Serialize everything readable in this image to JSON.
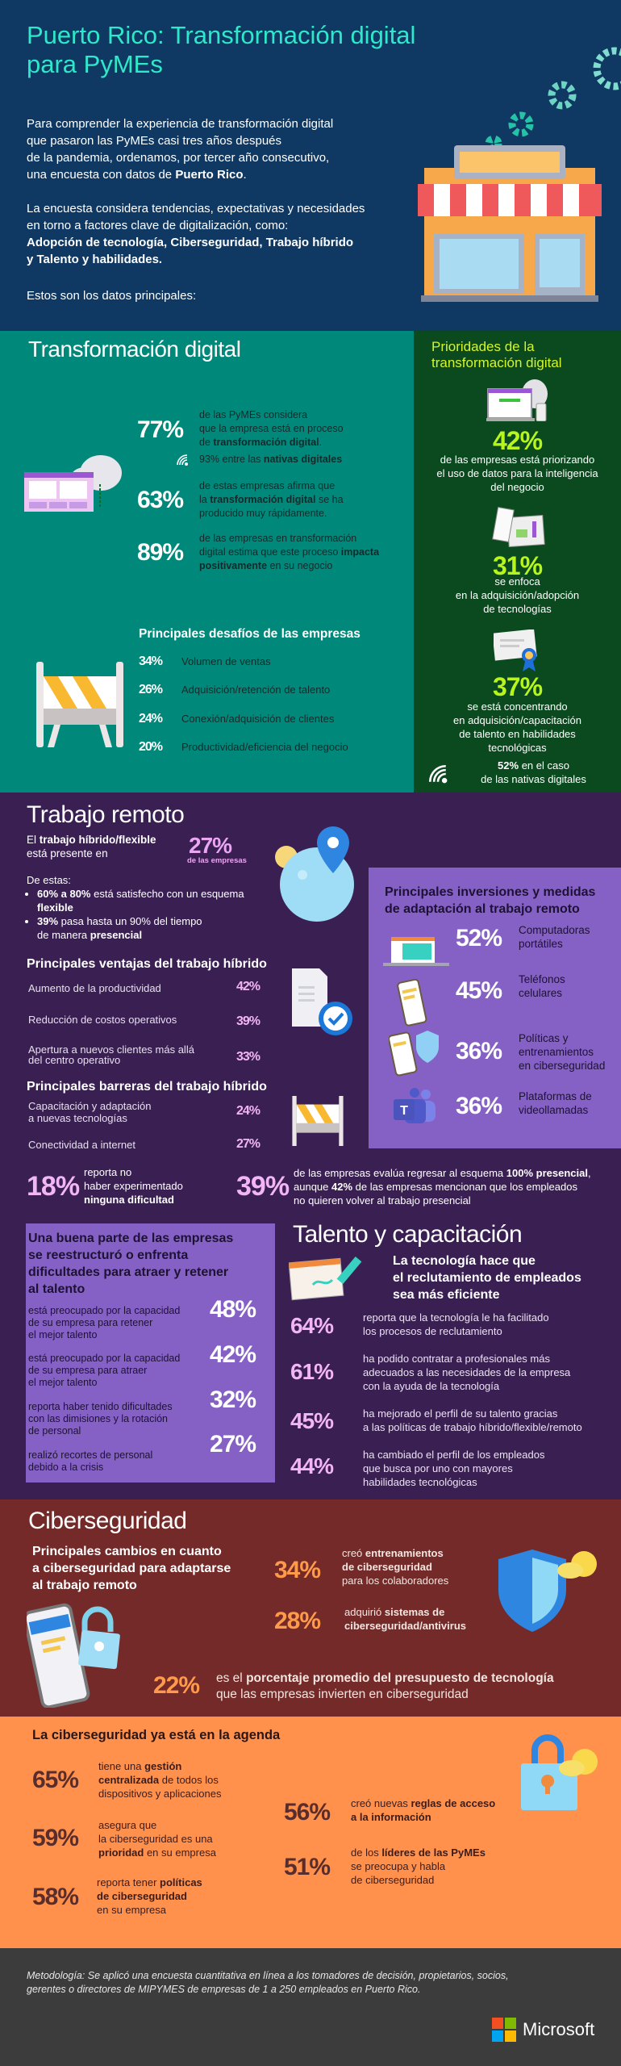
{
  "colors": {
    "header": "#0f3862",
    "title": "#2ee8c9",
    "teal": "#00897b",
    "green": "#0b4a1f",
    "lime": "#c8f52c",
    "purple_dark": "#3a1f52",
    "purple_light": "#8661c5",
    "pink": "#f2b5f6",
    "maroon": "#732a28",
    "orange_text": "#ff9a4a",
    "orange": "#ff914d",
    "brown": "#5a2d2d",
    "footer": "#3c3c3c"
  },
  "header": {
    "title_line1": "Puerto Rico: Transformación digital",
    "title_line2": "para PyMEs",
    "intro1": [
      "Para comprender la experiencia de transformación digital\nque pasaron las PyMEs casi tres años después\nde la pandemia, ordenamos, por tercer año consecutivo,\nuna encuesta con datos de ",
      {
        "b": "Puerto Rico"
      },
      "."
    ],
    "intro2": [
      "La encuesta considera tendencias, expectativas y necesidades\nen torno a factores clave de digitalización, como:\n",
      {
        "b": "Adopción de tecnología, Ciberseguridad, Trabajo híbrido\ny Talento y habilidades."
      }
    ],
    "closing": "Estos son los datos principales:"
  },
  "transformacion": {
    "title": "Transformación digital",
    "stats": [
      {
        "pct": "77%",
        "text": [
          "de las PyMEs considera\nque la empresa está en proceso\nde ",
          {
            "b": "transformación digital"
          },
          "."
        ]
      },
      {
        "pct": "63%",
        "text": [
          "de estas empresas afirma que\nla ",
          {
            "b": "transformación digital"
          },
          " se ha\nproducido muy rápidamente."
        ]
      },
      {
        "pct": "89%",
        "text": [
          "de las empresas en transformación\ndigital estima que este proceso ",
          {
            "b": "impacta\npositivamente"
          },
          " en su negocio"
        ]
      }
    ],
    "native_note": [
      "93% entre las ",
      {
        "b": "nativas digitales"
      }
    ],
    "challenges_title": "Principales desafíos de las empresas",
    "challenges": [
      {
        "pct": "34%",
        "label": "Volumen de ventas"
      },
      {
        "pct": "26%",
        "label": "Adquisición/retención de talento"
      },
      {
        "pct": "24%",
        "label": "Conexión/adquisición de clientes"
      },
      {
        "pct": "20%",
        "label": "Productividad/eficiencia del negocio"
      }
    ],
    "priorities": {
      "title": "Prioridades de la\ntransformación digital",
      "items": [
        {
          "pct": "42%",
          "text": "de las empresas está priorizando\nel uso de datos para la inteligencia\ndel negocio"
        },
        {
          "pct": "31%",
          "text": "se enfoca\nen la adquisición/adopción\nde tecnologías"
        },
        {
          "pct": "37%",
          "text": "se está concentrando\nen adquisición/capacitación\nde talento en habilidades\ntecnológicas"
        }
      ],
      "native_note": [
        {
          "b": "52%"
        },
        " en el caso\nde las nativas digitales"
      ]
    }
  },
  "remoto": {
    "title": "Trabajo remoto",
    "presence": [
      "El ",
      {
        "b": "trabajo híbrido/flexible"
      },
      "\nestá presente en"
    ],
    "presence_pct": "27%",
    "presence_pct_label": "de las empresas",
    "of_these": "De estas:",
    "bullets": [
      [
        {
          "b": "60% a 80%"
        },
        " está satisfecho con un esquema\n",
        {
          "b": "flexible"
        }
      ],
      [
        {
          "b": "39%"
        },
        " pasa hasta un 90% del tiempo\nde manera ",
        {
          "b": "presencial"
        }
      ]
    ],
    "advantages_title": "Principales ventajas del trabajo híbrido",
    "advantages": [
      {
        "label": "Aumento de la productividad",
        "pct": "42%"
      },
      {
        "label": "Reducción de costos operativos",
        "pct": "39%"
      },
      {
        "label": "Apertura a nuevos clientes más allá\ndel centro operativo",
        "pct": "33%"
      }
    ],
    "barriers_title": "Principales barreras del trabajo híbrido",
    "barriers": [
      {
        "label": "Capacitación y adaptación\na nuevas tecnologías",
        "pct": "24%"
      },
      {
        "label": "Conectividad a internet",
        "pct": "27%"
      }
    ],
    "investments_title": "Principales inversiones y medidas\nde adaptación al trabajo remoto",
    "investments": [
      {
        "pct": "52%",
        "label": "Computadoras\nportátiles",
        "icon": "laptop-icon"
      },
      {
        "pct": "45%",
        "label": "Teléfonos\ncelulares",
        "icon": "phone-icon"
      },
      {
        "pct": "36%",
        "label": "Políticas y\nentrenamientos\nen ciberseguridad",
        "icon": "phone-shield-icon"
      },
      {
        "pct": "36%",
        "label": "Plataformas de\nvideollamadas",
        "icon": "teams-icon"
      }
    ],
    "no_difficulty": {
      "pct": "18%",
      "text": [
        "reporta no\nhaber experimentado\n",
        {
          "b": "ninguna dificultad"
        }
      ]
    },
    "return": {
      "pct": "39%",
      "text": [
        "de las empresas evalúa regresar al esquema ",
        {
          "b": "100% presencial"
        },
        ",\naunque ",
        {
          "b": "42%"
        },
        " de las empresas mencionan que los empleados\nno quieren volver al trabajo presencial"
      ]
    }
  },
  "talent_box": {
    "title": "Una buena parte de las empresas\nse reestructuró o enfrenta\ndificultades para atraer y retener\nal talento",
    "rows": [
      {
        "text": "está preocupado por la capacidad\nde su empresa para retener\nel mejor talento",
        "pct": "48%"
      },
      {
        "text": "está preocupado por la capacidad\nde su empresa para atraer\nel mejor talento",
        "pct": "42%"
      },
      {
        "text": "reporta haber tenido dificultades\ncon las dimisiones y la rotación\nde personal",
        "pct": "32%"
      },
      {
        "text": "realizó recortes de personal\ndebido a la crisis",
        "pct": "27%"
      }
    ]
  },
  "talento": {
    "title": "Talento y capacitación",
    "subtitle": "La tecnología hace que\nel reclutamiento de empleados\nsea más eficiente",
    "rows": [
      {
        "pct": "64%",
        "text": "reporta que la tecnología le ha facilitado\nlos procesos de reclutamiento"
      },
      {
        "pct": "61%",
        "text": "ha podido contratar a profesionales más\nadecuados a las necesidades de la empresa\ncon la ayuda de la tecnología"
      },
      {
        "pct": "45%",
        "text": "ha mejorado el perfil de su talento gracias\na las políticas de trabajo híbrido/flexible/remoto"
      },
      {
        "pct": "44%",
        "text": "ha cambiado el perfil de los empleados\nque busca por uno con mayores\nhabilidades tecnológicas"
      }
    ]
  },
  "ciber": {
    "title": "Ciberseguridad",
    "subtitle": "Principales cambios en cuanto\na ciberseguridad para adaptarse\nal trabajo remoto",
    "changes": [
      {
        "pct": "34%",
        "text": [
          "creó ",
          {
            "b": "entrenamientos\nde ciberseguridad"
          },
          "\npara los colaboradores"
        ]
      },
      {
        "pct": "28%",
        "text": [
          "adquirió ",
          {
            "b": "sistemas de\nciberseguridad/antivirus"
          }
        ]
      }
    ],
    "budget": {
      "pct": "22%",
      "text": [
        "es el ",
        {
          "b": "porcentaje promedio del presupuesto de tecnología"
        },
        "\nque las empresas invierten en ciberseguridad"
      ]
    }
  },
  "agenda": {
    "title": "La ciberseguridad ya está en la agenda",
    "left": [
      {
        "pct": "65%",
        "text": [
          "tiene una ",
          {
            "b": "gestión\ncentralizada"
          },
          " de todos los\ndispositivos y aplicaciones"
        ]
      },
      {
        "pct": "59%",
        "text": [
          "asegura que\nla ciberseguridad es una\n",
          {
            "b": "prioridad"
          },
          " en su empresa"
        ]
      },
      {
        "pct": "58%",
        "text": [
          "reporta tener ",
          {
            "b": "políticas\nde ciberseguridad"
          },
          "\nen su empresa"
        ]
      }
    ],
    "right": [
      {
        "pct": "56%",
        "text": [
          "creó nuevas ",
          {
            "b": "reglas de acceso\na la información"
          }
        ]
      },
      {
        "pct": "51%",
        "text": [
          "de los ",
          {
            "b": "líderes de las PyMEs"
          },
          "\nse preocupa y habla\nde ciberseguridad"
        ]
      }
    ]
  },
  "footer": {
    "methodology": "Metodología: Se aplicó una encuesta cuantitativa en línea a los tomadores de decisión, propietarios, socios,\ngerentes o directores de MIPYMES de empresas de 1 a 250 empleados en Puerto Rico.",
    "brand": "Microsoft"
  }
}
